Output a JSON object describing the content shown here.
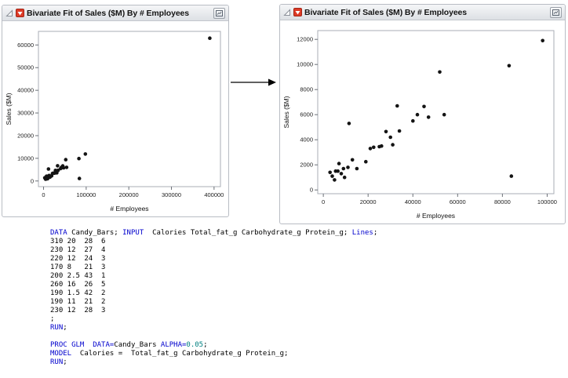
{
  "panels": [
    {
      "title": "Bivariate Fit of Sales ($M) By # Employees"
    },
    {
      "title": "Bivariate Fit of Sales ($M) By # Employees"
    }
  ],
  "chart_data": [
    {
      "type": "scatter",
      "title": "Bivariate Fit of Sales ($M) By # Employees",
      "xlabel": "# Employees",
      "ylabel": "Sales ($M)",
      "xlim": [
        -12000,
        415000
      ],
      "ylim": [
        -2500,
        66000
      ],
      "xticks": [
        0,
        100000,
        200000,
        300000,
        400000
      ],
      "xtick_labels": [
        "0",
        "100000",
        "200000",
        "300000",
        "400000"
      ],
      "yticks": [
        0,
        10000,
        20000,
        30000,
        40000,
        50000,
        60000
      ],
      "ytick_labels": [
        "0",
        "10000",
        "20000",
        "30000",
        "40000",
        "50000",
        "60000"
      ],
      "grid": false,
      "legend": false,
      "marker_color": "#141414",
      "points": [
        [
          3000,
          1400
        ],
        [
          4000,
          1100
        ],
        [
          5000,
          800
        ],
        [
          5500,
          1500
        ],
        [
          6500,
          1500
        ],
        [
          7000,
          2100
        ],
        [
          8000,
          1300
        ],
        [
          9000,
          1700
        ],
        [
          9500,
          1000
        ],
        [
          11000,
          1800
        ],
        [
          11500,
          5300
        ],
        [
          13000,
          2400
        ],
        [
          15000,
          1700
        ],
        [
          19000,
          2250
        ],
        [
          21000,
          3300
        ],
        [
          22500,
          3400
        ],
        [
          25000,
          3450
        ],
        [
          26000,
          3500
        ],
        [
          28000,
          4650
        ],
        [
          30000,
          4200
        ],
        [
          31000,
          3600
        ],
        [
          33000,
          6700
        ],
        [
          34000,
          4700
        ],
        [
          40000,
          5500
        ],
        [
          42000,
          6000
        ],
        [
          45000,
          6650
        ],
        [
          47000,
          5800
        ],
        [
          52000,
          9400
        ],
        [
          54000,
          6000
        ],
        [
          83000,
          9900
        ],
        [
          84000,
          1100
        ],
        [
          98000,
          11900
        ],
        [
          390000,
          63000
        ]
      ]
    },
    {
      "type": "scatter",
      "title": "Bivariate Fit of Sales ($M) By # Employees",
      "xlabel": "# Employees",
      "ylabel": "Sales ($M)",
      "xlim": [
        -2500,
        103000
      ],
      "ylim": [
        -300,
        12700
      ],
      "xticks": [
        0,
        20000,
        40000,
        60000,
        80000,
        100000
      ],
      "xtick_labels": [
        "0",
        "20000",
        "40000",
        "60000",
        "80000",
        "100000"
      ],
      "yticks": [
        0,
        2000,
        4000,
        6000,
        8000,
        10000,
        12000
      ],
      "ytick_labels": [
        "0",
        "2000",
        "4000",
        "6000",
        "8000",
        "10000",
        "12000"
      ],
      "grid": false,
      "legend": false,
      "marker_color": "#141414",
      "points": [
        [
          3000,
          1400
        ],
        [
          4000,
          1100
        ],
        [
          5000,
          800
        ],
        [
          5500,
          1500
        ],
        [
          6500,
          1500
        ],
        [
          7000,
          2100
        ],
        [
          8000,
          1300
        ],
        [
          9000,
          1700
        ],
        [
          9500,
          1000
        ],
        [
          11000,
          1800
        ],
        [
          11500,
          5300
        ],
        [
          13000,
          2400
        ],
        [
          15000,
          1700
        ],
        [
          19000,
          2250
        ],
        [
          21000,
          3300
        ],
        [
          22500,
          3400
        ],
        [
          25000,
          3450
        ],
        [
          26000,
          3500
        ],
        [
          28000,
          4650
        ],
        [
          30000,
          4200
        ],
        [
          31000,
          3600
        ],
        [
          33000,
          6700
        ],
        [
          34000,
          4700
        ],
        [
          40000,
          5500
        ],
        [
          42000,
          6000
        ],
        [
          45000,
          6650
        ],
        [
          47000,
          5800
        ],
        [
          52000,
          9400
        ],
        [
          54000,
          6000
        ],
        [
          83000,
          9900
        ],
        [
          84000,
          1100
        ],
        [
          98000,
          11900
        ]
      ]
    }
  ],
  "code": {
    "keyword_color": "#0000cd",
    "number_color": "#008080",
    "plain_color": "#000000",
    "lines": [
      [
        {
          "t": "DATA",
          "c": "k"
        },
        {
          "t": " Candy_Bars; ",
          "c": "p"
        },
        {
          "t": "INPUT",
          "c": "k"
        },
        {
          "t": "  Calories Total_fat_g Carbohydrate_g Protein_g; ",
          "c": "p"
        },
        {
          "t": "Lines",
          "c": "k"
        },
        {
          "t": ";",
          "c": "p"
        }
      ],
      [
        {
          "t": "310 20  28  6",
          "c": "p"
        }
      ],
      [
        {
          "t": "230 12  27  4",
          "c": "p"
        }
      ],
      [
        {
          "t": "220 12  24  3",
          "c": "p"
        }
      ],
      [
        {
          "t": "170 8   21  3",
          "c": "p"
        }
      ],
      [
        {
          "t": "200 2.5 43  1",
          "c": "p"
        }
      ],
      [
        {
          "t": "260 16  26  5",
          "c": "p"
        }
      ],
      [
        {
          "t": "190 1.5 42  2",
          "c": "p"
        }
      ],
      [
        {
          "t": "190 11  21  2",
          "c": "p"
        }
      ],
      [
        {
          "t": "230 12  28  3",
          "c": "p"
        }
      ],
      [
        {
          "t": ";",
          "c": "p"
        }
      ],
      [
        {
          "t": "RUN",
          "c": "k"
        },
        {
          "t": ";",
          "c": "p"
        }
      ],
      [],
      [
        {
          "t": "PROC GLM",
          "c": "k"
        },
        {
          "t": "  ",
          "c": "p"
        },
        {
          "t": "DATA=",
          "c": "k"
        },
        {
          "t": "Candy_Bars ",
          "c": "p"
        },
        {
          "t": "ALPHA=",
          "c": "k"
        },
        {
          "t": "0.05",
          "c": "n"
        },
        {
          "t": ";",
          "c": "p"
        }
      ],
      [
        {
          "t": "MODEL",
          "c": "k"
        },
        {
          "t": "  Calories =  Total_fat_g Carbohydrate_g Protein_g;",
          "c": "p"
        }
      ],
      [
        {
          "t": "RUN",
          "c": "k"
        },
        {
          "t": ";",
          "c": "p"
        }
      ]
    ]
  }
}
